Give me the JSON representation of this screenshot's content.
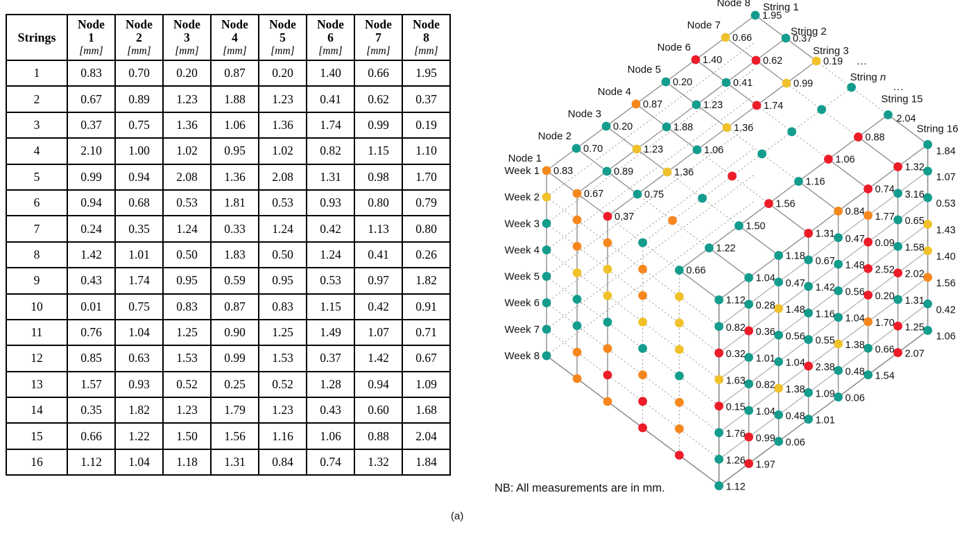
{
  "caption": "(a)",
  "table": {
    "corner_header": "Strings",
    "node_prefix": "Node",
    "unit": "[mm]",
    "node_numbers": [
      "1",
      "2",
      "3",
      "4",
      "5",
      "6",
      "7",
      "8"
    ],
    "rows": [
      {
        "string": "1",
        "values": [
          "0.83",
          "0.70",
          "0.20",
          "0.87",
          "0.20",
          "1.40",
          "0.66",
          "1.95"
        ]
      },
      {
        "string": "2",
        "values": [
          "0.67",
          "0.89",
          "1.23",
          "1.88",
          "1.23",
          "0.41",
          "0.62",
          "0.37"
        ]
      },
      {
        "string": "3",
        "values": [
          "0.37",
          "0.75",
          "1.36",
          "1.06",
          "1.36",
          "1.74",
          "0.99",
          "0.19"
        ]
      },
      {
        "string": "4",
        "values": [
          "2.10",
          "1.00",
          "1.02",
          "0.95",
          "1.02",
          "0.82",
          "1.15",
          "1.10"
        ]
      },
      {
        "string": "5",
        "values": [
          "0.99",
          "0.94",
          "2.08",
          "1.36",
          "2.08",
          "1.31",
          "0.98",
          "1.70"
        ]
      },
      {
        "string": "6",
        "values": [
          "0.94",
          "0.68",
          "0.53",
          "1.81",
          "0.53",
          "0.93",
          "0.80",
          "0.79"
        ]
      },
      {
        "string": "7",
        "values": [
          "0.24",
          "0.35",
          "1.24",
          "0.33",
          "1.24",
          "0.42",
          "1.13",
          "0.80"
        ]
      },
      {
        "string": "8",
        "values": [
          "1.42",
          "1.01",
          "0.50",
          "1.83",
          "0.50",
          "1.24",
          "0.41",
          "0.26"
        ]
      },
      {
        "string": "9",
        "values": [
          "0.43",
          "1.74",
          "0.95",
          "0.59",
          "0.95",
          "0.53",
          "0.97",
          "1.82"
        ]
      },
      {
        "string": "10",
        "values": [
          "0.01",
          "0.75",
          "0.83",
          "0.87",
          "0.83",
          "1.15",
          "0.42",
          "0.91"
        ]
      },
      {
        "string": "11",
        "values": [
          "0.76",
          "1.04",
          "1.25",
          "0.90",
          "1.25",
          "1.49",
          "1.07",
          "0.71"
        ]
      },
      {
        "string": "12",
        "values": [
          "0.85",
          "0.63",
          "1.53",
          "0.99",
          "1.53",
          "0.37",
          "1.42",
          "0.67"
        ]
      },
      {
        "string": "13",
        "values": [
          "1.57",
          "0.93",
          "0.52",
          "0.25",
          "0.52",
          "1.28",
          "0.94",
          "1.09"
        ]
      },
      {
        "string": "14",
        "values": [
          "0.35",
          "1.82",
          "1.23",
          "1.79",
          "1.23",
          "0.43",
          "0.60",
          "1.68"
        ]
      },
      {
        "string": "15",
        "values": [
          "0.66",
          "1.22",
          "1.50",
          "1.56",
          "1.16",
          "1.06",
          "0.88",
          "2.04"
        ]
      },
      {
        "string": "16",
        "values": [
          "1.12",
          "1.04",
          "1.18",
          "1.31",
          "0.84",
          "0.74",
          "1.32",
          "1.84"
        ]
      }
    ]
  },
  "diagram": {
    "note": "NB: All measurements are in mm.",
    "ellipsis": "...",
    "colors": {
      "teal": "#149C8D",
      "orange": "#F6871F",
      "yellow": "#F0C12B",
      "red": "#ED1C29"
    },
    "week_labels": [
      "Week 1",
      "Week 2",
      "Week 3",
      "Week 4",
      "Week 5",
      "Week 6",
      "Week 7",
      "Week 8"
    ],
    "node_labels": [
      "Node 1",
      "Node 2",
      "Node 3",
      "Node 4",
      "Node 5",
      "Node 6",
      "Node 7",
      "Node 8"
    ],
    "strings": [
      {
        "label": "String 1",
        "week1_values": [
          "0.83",
          "0.70",
          "0.20",
          "0.87",
          "0.20",
          "1.40",
          "0.66",
          "1.95"
        ],
        "week1_colors": [
          "orange",
          "teal",
          "teal",
          "orange",
          "teal",
          "red",
          "yellow",
          "teal"
        ]
      },
      {
        "label": "String 2",
        "week1_values": [
          "0.67",
          "0.89",
          "1.23",
          "1.88",
          "1.23",
          "0.41",
          "0.62",
          "0.37"
        ],
        "week1_colors": [
          "orange",
          "teal",
          "yellow",
          "teal",
          "teal",
          "teal",
          "red",
          "teal"
        ]
      },
      {
        "label": "String 3",
        "week1_values": [
          "0.37",
          "0.75",
          "1.36",
          "1.06",
          "1.36",
          "1.74",
          "0.99",
          "0.19"
        ],
        "week1_colors": [
          "red",
          "teal",
          "yellow",
          "teal",
          "yellow",
          "red",
          "yellow",
          "yellow"
        ]
      },
      {
        "label": "String n",
        "week1_values": null,
        "week1_colors": [
          "teal",
          "orange",
          "teal",
          "red",
          "teal",
          "teal",
          "teal",
          "teal"
        ]
      },
      {
        "label": "String 15",
        "week1_values": [
          "0.66",
          "1.22",
          "1.50",
          "1.56",
          "1.16",
          "1.06",
          "0.88",
          "2.04"
        ],
        "week1_colors": [
          "teal",
          "teal",
          "teal",
          "red",
          "teal",
          "red",
          "red",
          "teal"
        ]
      },
      {
        "label": "String 16",
        "week1_values": [
          "1.12",
          "1.04",
          "1.18",
          "1.31",
          "0.84",
          "0.74",
          "1.32",
          "1.84"
        ],
        "week1_colors": [
          "teal",
          "teal",
          "teal",
          "red",
          "orange",
          "red",
          "red",
          "teal"
        ]
      }
    ],
    "left_face_columns": [
      {
        "string": "String 1",
        "colors_w2_w8": [
          "yellow",
          "teal",
          "teal",
          "teal",
          "teal",
          "teal",
          "teal"
        ]
      },
      {
        "string": "String 2",
        "colors_w2_w8": [
          "orange",
          "orange",
          "yellow",
          "teal",
          "teal",
          "orange",
          "orange"
        ]
      },
      {
        "string": "String 3",
        "colors_w2_w8": [
          "orange",
          "yellow",
          "yellow",
          "teal",
          "orange",
          "red",
          "orange"
        ]
      },
      {
        "string": "String n",
        "colors_w2_w8": [
          "orange",
          "orange",
          "yellow",
          "teal",
          "orange",
          "red",
          "red"
        ]
      },
      {
        "string": "String 15",
        "colors_w2_w8": [
          "yellow",
          "yellow",
          "yellow",
          "teal",
          "orange",
          "orange",
          "red"
        ]
      }
    ],
    "right_face_columns": [
      {
        "node": "Node 1",
        "values_w2_w8": [
          "0.82",
          "0.32",
          "1.63",
          "0.15",
          "1.76",
          "1.26",
          "1.12"
        ],
        "colors_w2_w8": [
          "teal",
          "red",
          "yellow",
          "red",
          "teal",
          "teal",
          "teal"
        ]
      },
      {
        "node": "Node 2",
        "values_w2_w8": [
          "0.28",
          "0.36",
          "1.01",
          "0.82",
          "1.04",
          "0.99",
          "1.97"
        ],
        "colors_w2_w8": [
          "teal",
          "red",
          "teal",
          "teal",
          "teal",
          "red",
          "red"
        ]
      },
      {
        "node": "Node 3",
        "values_w2_w8": [
          "0.47",
          "1.48",
          "0.56",
          "1.04",
          "1.38",
          "0.48",
          "0.06"
        ],
        "colors_w2_w8": [
          "teal",
          "yellow",
          "teal",
          "teal",
          "yellow",
          "teal",
          "teal"
        ]
      },
      {
        "node": "Node 4",
        "values_w2_w8": [
          "0.67",
          "1.42",
          "1.16",
          "0.55",
          "2.38",
          "1.09",
          "1.01"
        ],
        "colors_w2_w8": [
          "teal",
          "teal",
          "teal",
          "teal",
          "red",
          "teal",
          "teal"
        ]
      },
      {
        "node": "Node 5",
        "values_w2_w8": [
          "0.47",
          "1.48",
          "0.56",
          "1.04",
          "1.38",
          "0.48",
          "0.06"
        ],
        "colors_w2_w8": [
          "teal",
          "teal",
          "teal",
          "teal",
          "yellow",
          "teal",
          "teal"
        ]
      },
      {
        "node": "Node 6",
        "values_w2_w8": [
          "1.77",
          "0.09",
          "2.52",
          "0.20",
          "1.70",
          "0.66",
          "1.54"
        ],
        "colors_w2_w8": [
          "orange",
          "red",
          "red",
          "red",
          "orange",
          "teal",
          "teal"
        ]
      },
      {
        "node": "Node 7",
        "values_w2_w8": [
          "3.16",
          "0.65",
          "1.58",
          "2.02",
          "1.31",
          "1.25",
          "2.07"
        ],
        "colors_w2_w8": [
          "teal",
          "teal",
          "teal",
          "red",
          "teal",
          "red",
          "red"
        ]
      },
      {
        "node": "Node 8",
        "values_w2_w8": [
          "1.07",
          "0.53",
          "1.43",
          "1.40",
          "1.56",
          "0.42",
          "1.06"
        ],
        "colors_w2_w8": [
          "teal",
          "teal",
          "yellow",
          "yellow",
          "orange",
          "teal",
          "teal"
        ]
      }
    ]
  }
}
